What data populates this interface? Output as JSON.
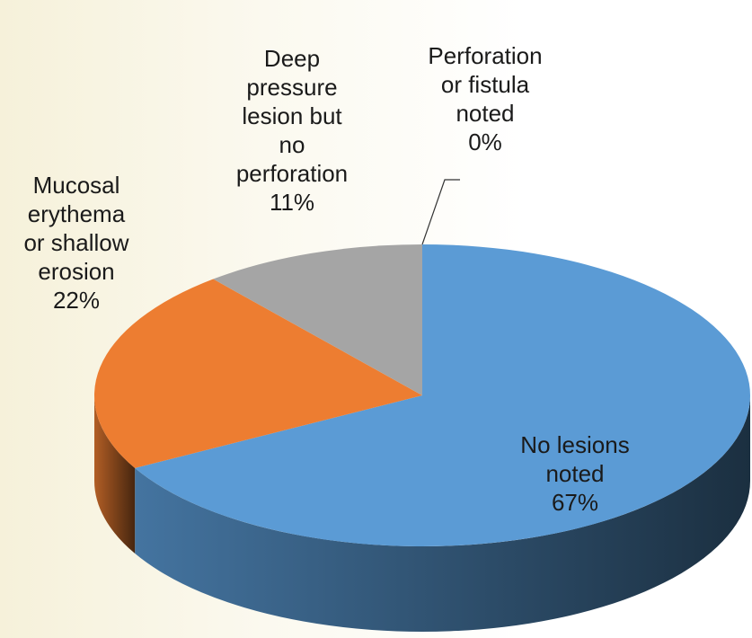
{
  "chart_data": {
    "type": "pie",
    "categories": [
      "No lesions\nnoted",
      "Mucosal\nerythema\nor shallow\nerosion",
      "Deep\npressure\nlesion but\nno\nperforation",
      "Perforation\nor fistula\nnoted"
    ],
    "values": [
      67,
      22,
      11,
      0
    ],
    "value_labels": [
      "67%",
      "22%",
      "11%",
      "0%"
    ],
    "colors": [
      "#5b9bd5",
      "#ed7d31",
      "#a5a5a5",
      "#ffc000"
    ]
  }
}
